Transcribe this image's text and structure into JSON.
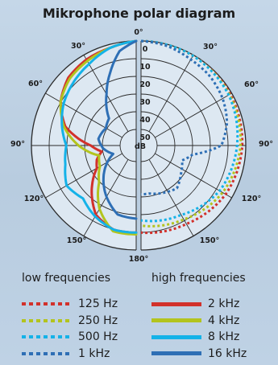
{
  "chart_data": {
    "type": "polar",
    "title": "Mikrophone polar diagram",
    "angle_ticks": {
      "top": "0°",
      "left": [
        "30°",
        "60°",
        "90°",
        "120°",
        "150°"
      ],
      "right": [
        "30°",
        "60°",
        "90°",
        "120°",
        "150°"
      ],
      "bottom": "180°"
    },
    "radial_ticks": [
      "0",
      "10",
      "20",
      "30",
      "40",
      "50"
    ],
    "radial_unit": "dB",
    "radial_range_db": [
      0,
      60
    ],
    "left_half": {
      "group": "high frequencies",
      "series": [
        {
          "name": "2 kHz",
          "color": "#d2312b",
          "style": "solid",
          "points": [
            [
              0,
              0
            ],
            [
              15,
              2
            ],
            [
              30,
              3
            ],
            [
              45,
              5
            ],
            [
              60,
              10
            ],
            [
              75,
              18
            ],
            [
              90,
              34
            ],
            [
              100,
              40
            ],
            [
              110,
              36
            ],
            [
              120,
              34
            ],
            [
              135,
              24
            ],
            [
              150,
              14
            ],
            [
              165,
              10
            ],
            [
              180,
              10
            ]
          ]
        },
        {
          "name": "4 kHz",
          "color": "#b3c41e",
          "style": "solid",
          "points": [
            [
              0,
              0
            ],
            [
              15,
              2
            ],
            [
              30,
              4
            ],
            [
              45,
              6
            ],
            [
              60,
              10
            ],
            [
              75,
              17
            ],
            [
              90,
              27
            ],
            [
              105,
              38
            ],
            [
              120,
              36
            ],
            [
              135,
              30
            ],
            [
              150,
              18
            ],
            [
              165,
              9
            ],
            [
              180,
              9
            ]
          ]
        },
        {
          "name": "8 kHz",
          "color": "#14b2e8",
          "style": "solid",
          "points": [
            [
              0,
              0
            ],
            [
              15,
              2
            ],
            [
              30,
              6
            ],
            [
              45,
              9
            ],
            [
              60,
              12
            ],
            [
              75,
              16
            ],
            [
              90,
              20
            ],
            [
              105,
              18
            ],
            [
              120,
              14
            ],
            [
              135,
              17
            ],
            [
              150,
              13
            ],
            [
              165,
              10
            ],
            [
              180,
              10
            ]
          ]
        },
        {
          "name": "16 kHz",
          "color": "#2e6fb5",
          "style": "solid",
          "points": [
            [
              0,
              0
            ],
            [
              10,
              5
            ],
            [
              20,
              16
            ],
            [
              30,
              26
            ],
            [
              45,
              38
            ],
            [
              60,
              40
            ],
            [
              80,
              38
            ],
            [
              95,
              41
            ],
            [
              110,
              46
            ],
            [
              130,
              36
            ],
            [
              150,
              26
            ],
            [
              165,
              19
            ],
            [
              180,
              18
            ]
          ]
        }
      ]
    },
    "right_half": {
      "group": "low frequencies",
      "series": [
        {
          "name": "125 Hz",
          "color": "#d2312b",
          "style": "dotted",
          "points": [
            [
              0,
              0
            ],
            [
              30,
              0.5
            ],
            [
              60,
              1
            ],
            [
              90,
              2
            ],
            [
              120,
              4
            ],
            [
              150,
              8
            ],
            [
              180,
              10
            ]
          ]
        },
        {
          "name": "250 Hz",
          "color": "#b3c41e",
          "style": "dotted",
          "points": [
            [
              0,
              0
            ],
            [
              30,
              0.5
            ],
            [
              60,
              1.5
            ],
            [
              90,
              3
            ],
            [
              120,
              6
            ],
            [
              150,
              11
            ],
            [
              180,
              14
            ]
          ]
        },
        {
          "name": "500 Hz",
          "color": "#14b2e8",
          "style": "dotted",
          "points": [
            [
              0,
              0
            ],
            [
              30,
              0.5
            ],
            [
              60,
              2
            ],
            [
              90,
              5
            ],
            [
              120,
              8
            ],
            [
              150,
              14
            ],
            [
              180,
              17
            ]
          ]
        },
        {
          "name": "1 kHz",
          "color": "#2e6fb5",
          "style": "dotted",
          "points": [
            [
              0,
              0
            ],
            [
              15,
              1
            ],
            [
              30,
              3
            ],
            [
              45,
              4
            ],
            [
              60,
              6
            ],
            [
              75,
              9
            ],
            [
              90,
              14
            ],
            [
              100,
              30
            ],
            [
              110,
              35
            ],
            [
              125,
              32
            ],
            [
              140,
              28
            ],
            [
              155,
              30
            ],
            [
              170,
              32
            ],
            [
              180,
              32
            ]
          ]
        }
      ]
    }
  },
  "legend": {
    "low_heading": "low frequencies",
    "high_heading": "high frequencies",
    "low": [
      {
        "label": "125 Hz",
        "color": "#d2312b"
      },
      {
        "label": "250 Hz",
        "color": "#b3c41e"
      },
      {
        "label": "500 Hz",
        "color": "#14b2e8"
      },
      {
        "label": "1 kHz",
        "color": "#2e6fb5"
      }
    ],
    "high": [
      {
        "label": "2 kHz",
        "color": "#d2312b"
      },
      {
        "label": "4 kHz",
        "color": "#b3c41e"
      },
      {
        "label": "8 kHz",
        "color": "#14b2e8"
      },
      {
        "label": "16 kHz",
        "color": "#2e6fb5"
      }
    ]
  }
}
